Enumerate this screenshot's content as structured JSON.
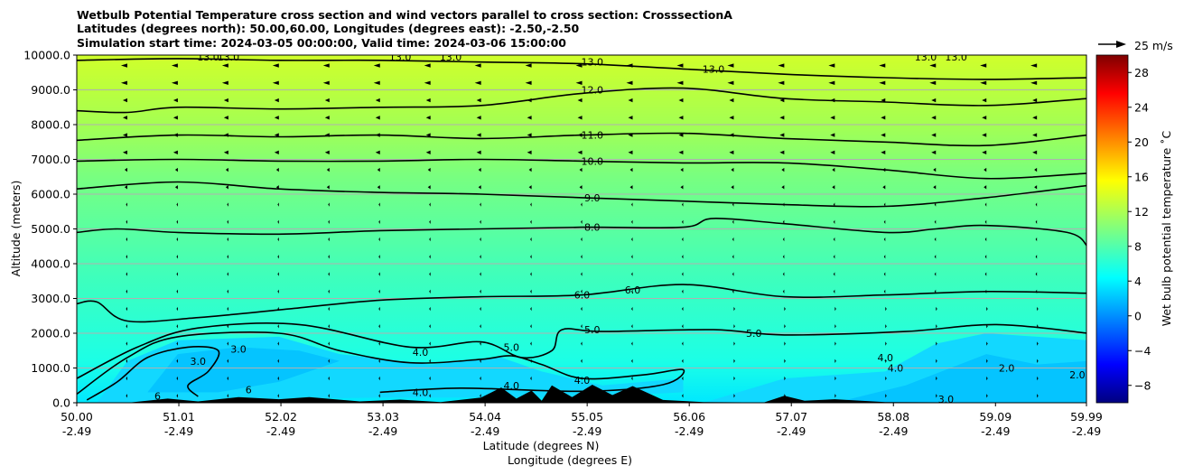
{
  "chart_data": {
    "type": "heatmap",
    "title_lines": [
      "Wetbulb Potential Temperature cross section and wind vectors parallel to cross section: CrosssectionA",
      "Latitudes (degrees north): 50.00,60.00, Longitudes (degrees east): -2.50,-2.50",
      "Simulation start time: 2024-03-05 00:00:00, Valid time: 2024-03-06 15:00:00"
    ],
    "xlabel_lines": [
      "Latitude (degrees N)",
      "Longitude (degrees E)"
    ],
    "ylabel": "Altitude (meters)",
    "xlim": [
      50.0,
      59.99
    ],
    "ylim": [
      0,
      10000
    ],
    "x_ticks": [
      {
        "lat": "50.00",
        "lon": "-2.49",
        "value": 50.0
      },
      {
        "lat": "51.01",
        "lon": "-2.49",
        "value": 51.01
      },
      {
        "lat": "52.02",
        "lon": "-2.49",
        "value": 52.02
      },
      {
        "lat": "53.03",
        "lon": "-2.49",
        "value": 53.03
      },
      {
        "lat": "54.04",
        "lon": "-2.49",
        "value": 54.04
      },
      {
        "lat": "55.05",
        "lon": "-2.49",
        "value": 55.05
      },
      {
        "lat": "56.06",
        "lon": "-2.49",
        "value": 56.06
      },
      {
        "lat": "57.07",
        "lon": "-2.49",
        "value": 57.07
      },
      {
        "lat": "58.08",
        "lon": "-2.49",
        "value": 58.08
      },
      {
        "lat": "59.09",
        "lon": "-2.49",
        "value": 59.09
      },
      {
        "lat": "59.99",
        "lon": "-2.49",
        "value": 59.99
      }
    ],
    "y_ticks": [
      {
        "label": "0.0",
        "value": 0
      },
      {
        "label": "1000.0",
        "value": 1000
      },
      {
        "label": "2000.0",
        "value": 2000
      },
      {
        "label": "3000.0",
        "value": 3000
      },
      {
        "label": "4000.0",
        "value": 4000
      },
      {
        "label": "5000.0",
        "value": 5000
      },
      {
        "label": "6000.0",
        "value": 6000
      },
      {
        "label": "7000.0",
        "value": 7000
      },
      {
        "label": "8000.0",
        "value": 8000
      },
      {
        "label": "9000.0",
        "value": 9000
      },
      {
        "label": "10000.0",
        "value": 10000
      }
    ],
    "grid": "horizontal",
    "colorbar": {
      "label": "Wet bulb potential temperature $^\\circ$C",
      "label_display": "Wet bulb potential temperature ˚C",
      "range": [
        -10,
        30
      ],
      "ticks": [
        "−8",
        "−4",
        "0",
        "4",
        "8",
        "12",
        "16",
        "20",
        "24",
        "28"
      ],
      "tick_values": [
        -8,
        -4,
        0,
        4,
        8,
        12,
        16,
        20,
        24,
        28
      ],
      "colormap": "jet"
    },
    "quiver_key": {
      "label": "25 m/s",
      "speed": 25
    },
    "contours": [
      {
        "level": 3.0,
        "label": "3.0",
        "points": [
          [
            50.1,
            80
          ],
          [
            50.4,
            600
          ],
          [
            50.7,
            1300
          ],
          [
            51.1,
            1600
          ],
          [
            51.4,
            1500
          ],
          [
            51.3,
            900
          ],
          [
            51.1,
            500
          ],
          [
            51.2,
            180
          ]
        ]
      },
      {
        "level": 4.0,
        "label": "4.0",
        "points": [
          [
            50.0,
            250
          ],
          [
            50.5,
            1300
          ],
          [
            51.0,
            1900
          ],
          [
            52.0,
            2000
          ],
          [
            52.6,
            1500
          ],
          [
            53.3,
            1150
          ],
          [
            54.0,
            1250
          ],
          [
            54.3,
            1350
          ],
          [
            54.6,
            1100
          ],
          [
            55.0,
            700
          ],
          [
            55.6,
            800
          ],
          [
            56.0,
            950
          ],
          [
            55.8,
            520
          ],
          [
            55.0,
            330
          ],
          [
            53.8,
            420
          ],
          [
            53.0,
            300
          ]
        ]
      },
      {
        "level": 5.0,
        "label": "5.0",
        "points": [
          [
            50.0,
            700
          ],
          [
            50.6,
            1600
          ],
          [
            51.2,
            2150
          ],
          [
            52.2,
            2250
          ],
          [
            53.3,
            1600
          ],
          [
            54.0,
            1750
          ],
          [
            54.4,
            1300
          ],
          [
            54.7,
            1500
          ],
          [
            54.8,
            2100
          ],
          [
            55.2,
            2050
          ],
          [
            56.3,
            2100
          ],
          [
            57.0,
            1950
          ],
          [
            58.2,
            2050
          ],
          [
            59.1,
            2250
          ],
          [
            60.0,
            2000
          ]
        ]
      },
      {
        "level": 6.0,
        "label": "6.0",
        "points": [
          [
            50.0,
            2850
          ],
          [
            50.2,
            2900
          ],
          [
            50.5,
            2350
          ],
          [
            51.2,
            2450
          ],
          [
            52.1,
            2700
          ],
          [
            53.0,
            2950
          ],
          [
            54.0,
            3050
          ],
          [
            55.0,
            3100
          ],
          [
            56.0,
            3400
          ],
          [
            57.0,
            3050
          ],
          [
            58.0,
            3100
          ],
          [
            59.0,
            3200
          ],
          [
            60.0,
            3150
          ]
        ]
      },
      {
        "level": 8.0,
        "label": "8.0",
        "points": [
          [
            50.0,
            4900
          ],
          [
            50.4,
            5000
          ],
          [
            51.0,
            4900
          ],
          [
            52.0,
            4850
          ],
          [
            53.0,
            4950
          ],
          [
            54.0,
            5000
          ],
          [
            55.0,
            5050
          ],
          [
            56.0,
            5050
          ],
          [
            56.3,
            5300
          ],
          [
            57.0,
            5150
          ],
          [
            58.0,
            4900
          ],
          [
            58.5,
            5000
          ],
          [
            59.0,
            5100
          ],
          [
            59.8,
            4900
          ],
          [
            60.0,
            4500
          ]
        ]
      },
      {
        "level": 9.0,
        "label": "9.0",
        "points": [
          [
            50.0,
            6150
          ],
          [
            51.0,
            6350
          ],
          [
            52.0,
            6150
          ],
          [
            53.0,
            6050
          ],
          [
            54.0,
            6000
          ],
          [
            55.0,
            5900
          ],
          [
            56.0,
            5800
          ],
          [
            57.0,
            5700
          ],
          [
            58.0,
            5650
          ],
          [
            59.0,
            5900
          ],
          [
            60.0,
            6250
          ]
        ]
      },
      {
        "level": 10.0,
        "label": "10.0",
        "points": [
          [
            50.0,
            6950
          ],
          [
            51.0,
            7000
          ],
          [
            52.0,
            6950
          ],
          [
            53.0,
            6950
          ],
          [
            54.0,
            7000
          ],
          [
            55.0,
            6950
          ],
          [
            56.0,
            6900
          ],
          [
            57.0,
            6900
          ],
          [
            58.0,
            6700
          ],
          [
            59.0,
            6450
          ],
          [
            60.0,
            6600
          ]
        ]
      },
      {
        "level": 11.0,
        "label": "11.0",
        "points": [
          [
            50.0,
            7550
          ],
          [
            51.0,
            7700
          ],
          [
            52.0,
            7650
          ],
          [
            53.0,
            7700
          ],
          [
            54.0,
            7600
          ],
          [
            55.0,
            7700
          ],
          [
            56.0,
            7750
          ],
          [
            57.0,
            7600
          ],
          [
            58.0,
            7500
          ],
          [
            59.0,
            7400
          ],
          [
            60.0,
            7700
          ]
        ]
      },
      {
        "level": 12.0,
        "label": "12.0",
        "points": [
          [
            50.0,
            8400
          ],
          [
            50.5,
            8350
          ],
          [
            51.0,
            8500
          ],
          [
            52.0,
            8450
          ],
          [
            53.0,
            8500
          ],
          [
            54.0,
            8550
          ],
          [
            55.0,
            8900
          ],
          [
            56.0,
            9050
          ],
          [
            57.0,
            8750
          ],
          [
            58.0,
            8650
          ],
          [
            59.0,
            8550
          ],
          [
            60.0,
            8750
          ]
        ]
      },
      {
        "level": 13.0,
        "label": "13.0",
        "points": [
          [
            50.0,
            9850
          ],
          [
            51.0,
            9900
          ],
          [
            52.0,
            9850
          ],
          [
            53.0,
            9850
          ],
          [
            54.0,
            9800
          ],
          [
            55.0,
            9750
          ],
          [
            56.0,
            9600
          ],
          [
            57.0,
            9450
          ],
          [
            58.0,
            9350
          ],
          [
            59.0,
            9300
          ],
          [
            60.0,
            9350
          ]
        ]
      }
    ],
    "contour_labels": [
      {
        "label": "13.0",
        "x": 55.1,
        "y": 9800
      },
      {
        "label": "13.0",
        "x": 56.3,
        "y": 9600
      },
      {
        "label": "13.0",
        "x": 51.3,
        "y": 9950
      },
      {
        "label": "13.0",
        "x": 51.5,
        "y": 9950
      },
      {
        "label": "13.0",
        "x": 53.2,
        "y": 9950
      },
      {
        "label": "13.0",
        "x": 53.7,
        "y": 9950
      },
      {
        "label": "13.0",
        "x": 58.4,
        "y": 9950
      },
      {
        "label": "13.0",
        "x": 58.7,
        "y": 9950
      },
      {
        "label": "12.0",
        "x": 55.1,
        "y": 9000
      },
      {
        "label": "11.0",
        "x": 55.1,
        "y": 7700
      },
      {
        "label": "10.0",
        "x": 55.1,
        "y": 6950
      },
      {
        "label": "9.0",
        "x": 55.1,
        "y": 5900
      },
      {
        "label": "8.0",
        "x": 55.1,
        "y": 5050
      },
      {
        "label": "6.0",
        "x": 55.5,
        "y": 3250
      },
      {
        "label": "6.0",
        "x": 55.0,
        "y": 3100
      },
      {
        "label": "5.0",
        "x": 55.1,
        "y": 2100
      },
      {
        "label": "5.0",
        "x": 56.7,
        "y": 2000
      },
      {
        "label": "5.0",
        "x": 54.3,
        "y": 1600
      },
      {
        "label": "4.0",
        "x": 53.4,
        "y": 1450
      },
      {
        "label": "4.0",
        "x": 58.0,
        "y": 1300
      },
      {
        "label": "4.0",
        "x": 58.1,
        "y": 1000
      },
      {
        "label": "4.0",
        "x": 54.3,
        "y": 500
      },
      {
        "label": "4.0",
        "x": 53.4,
        "y": 300
      },
      {
        "label": "4.0",
        "x": 55.0,
        "y": 650
      },
      {
        "label": "3.0",
        "x": 51.6,
        "y": 1550
      },
      {
        "label": "3.0",
        "x": 51.2,
        "y": 1200
      },
      {
        "label": "2.0",
        "x": 59.2,
        "y": 1000
      },
      {
        "label": "2.0",
        "x": 59.9,
        "y": 800
      },
      {
        "label": "3.0",
        "x": 58.6,
        "y": 100
      },
      {
        "label": "6",
        "x": 50.8,
        "y": 200
      },
      {
        "label": "6",
        "x": 51.7,
        "y": 380
      }
    ],
    "terrain_profile": [
      [
        50.0,
        0
      ],
      [
        50.5,
        0
      ],
      [
        50.9,
        120
      ],
      [
        51.2,
        40
      ],
      [
        51.6,
        160
      ],
      [
        52.0,
        100
      ],
      [
        52.3,
        160
      ],
      [
        52.8,
        40
      ],
      [
        53.2,
        90
      ],
      [
        53.6,
        20
      ],
      [
        54.0,
        150
      ],
      [
        54.2,
        440
      ],
      [
        54.35,
        120
      ],
      [
        54.5,
        350
      ],
      [
        54.6,
        60
      ],
      [
        54.7,
        500
      ],
      [
        54.9,
        160
      ],
      [
        55.1,
        520
      ],
      [
        55.3,
        220
      ],
      [
        55.5,
        480
      ],
      [
        55.8,
        80
      ],
      [
        56.2,
        20
      ],
      [
        56.8,
        10
      ],
      [
        57.0,
        200
      ],
      [
        57.2,
        60
      ],
      [
        57.5,
        100
      ],
      [
        58.0,
        20
      ],
      [
        59.99,
        0
      ]
    ],
    "wind_vectors": "Arrows parallel to cross section; moderate leftward flow aloft (above 7000 m), weak flow below 6000 m"
  }
}
